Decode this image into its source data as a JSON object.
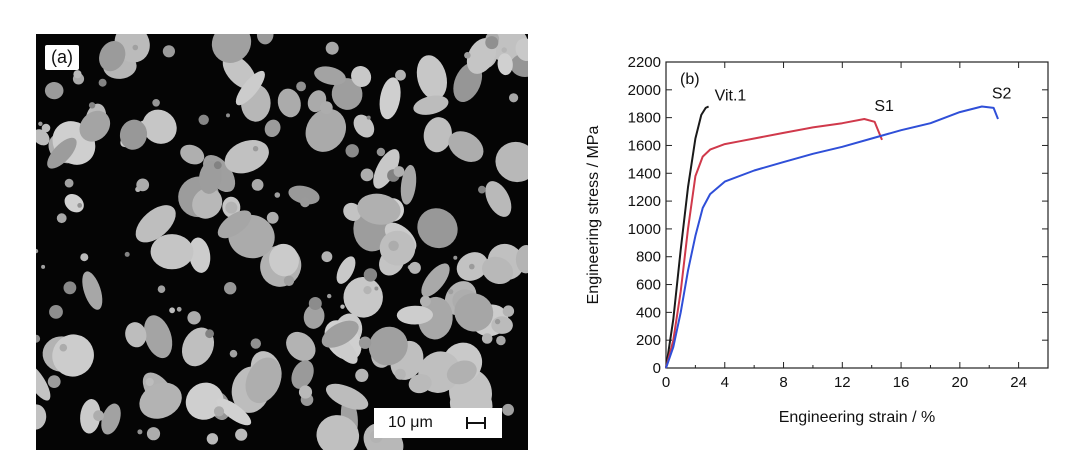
{
  "panel_a": {
    "label": "(a)",
    "scale_bar": "10 μm"
  },
  "chart_data": {
    "type": "line",
    "panel_label": "(b)",
    "xlabel": "Engineering strain / %",
    "ylabel": "Engineering stress / MPa",
    "xlim": [
      0,
      26
    ],
    "ylim": [
      0,
      2200
    ],
    "xticks": [
      0,
      4,
      8,
      12,
      16,
      20,
      24
    ],
    "yticks": [
      0,
      200,
      400,
      600,
      800,
      1000,
      1200,
      1400,
      1600,
      1800,
      2000,
      2200
    ],
    "grid": false,
    "series": [
      {
        "name": "Vit.1",
        "color": "#1a1a1a",
        "x": [
          0,
          0.5,
          1.0,
          1.5,
          2.0,
          2.4,
          2.7,
          2.9
        ],
        "y": [
          0,
          350,
          850,
          1300,
          1650,
          1820,
          1870,
          1880
        ]
      },
      {
        "name": "S1",
        "color": "#d0394b",
        "x": [
          0,
          0.5,
          1.0,
          1.5,
          2.0,
          2.5,
          3.0,
          4.0,
          5.0,
          6.0,
          8.0,
          10.0,
          12.0,
          13.5,
          14.2,
          14.7
        ],
        "y": [
          0,
          200,
          550,
          1000,
          1380,
          1520,
          1570,
          1610,
          1630,
          1650,
          1690,
          1730,
          1760,
          1790,
          1770,
          1640
        ]
      },
      {
        "name": "S2",
        "color": "#2f4fd8",
        "x": [
          0,
          0.5,
          1.0,
          1.5,
          2.0,
          2.5,
          3.0,
          4.0,
          6.0,
          8.0,
          10.0,
          12.0,
          14.0,
          16.0,
          18.0,
          20.0,
          21.5,
          22.3,
          22.6
        ],
        "y": [
          0,
          150,
          400,
          700,
          950,
          1150,
          1250,
          1340,
          1420,
          1480,
          1540,
          1590,
          1650,
          1710,
          1760,
          1840,
          1880,
          1870,
          1790
        ]
      }
    ]
  }
}
